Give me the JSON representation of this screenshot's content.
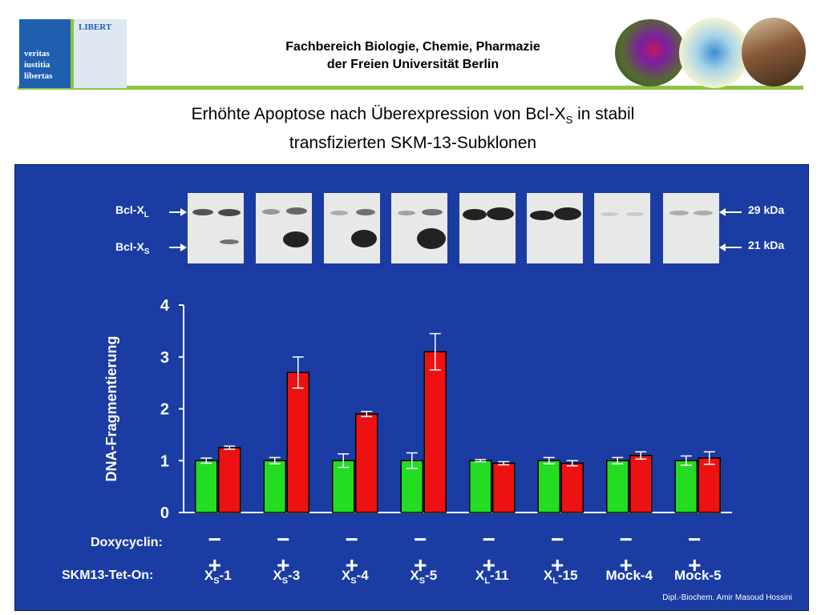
{
  "header": {
    "logo_text": [
      "veritas",
      "iustitia",
      "libertas"
    ],
    "logo_banner": "LIBERT",
    "institution_line1": "Fachbereich Biologie, Chemie, Pharmazie",
    "institution_line2": "der Freien Universität Berlin"
  },
  "title": {
    "line1_pre": "Erhöhte Apoptose nach Überexpression von Bcl-X",
    "line1_sub": "S",
    "line1_post": " in stabil",
    "line2": "transfizierten SKM-13-Subklonen"
  },
  "blot": {
    "left_label_top": "Bcl-X",
    "left_label_top_sub": "L",
    "left_label_bottom": "Bcl-X",
    "left_label_bottom_sub": "S",
    "right_label_top": "29 kDa",
    "right_label_bottom": "21 kDa"
  },
  "rows": {
    "doxy_label": "Doxycyclin:",
    "clone_label": "SKM13-Tet-On:",
    "signs": "− +"
  },
  "credit": "Dipl.-Biochem. Amir Masoud Hossini",
  "colors": {
    "panel": "#1a3ca3",
    "minus_bar": "#22dd22",
    "plus_bar": "#ee1111",
    "accent_green": "#8cc63f"
  },
  "chart_data": {
    "type": "bar",
    "ylabel": "DNA-Fragmentierung",
    "ylim": [
      0,
      4
    ],
    "yticks": [
      0,
      1,
      2,
      3,
      4
    ],
    "categories": [
      {
        "base": "X",
        "sub": "S",
        "suffix": "-1"
      },
      {
        "base": "X",
        "sub": "S",
        "suffix": "-3"
      },
      {
        "base": "X",
        "sub": "S",
        "suffix": "-4"
      },
      {
        "base": "X",
        "sub": "S",
        "suffix": "-5"
      },
      {
        "base": "X",
        "sub": "L",
        "suffix": "-11"
      },
      {
        "base": "X",
        "sub": "L",
        "suffix": "-15"
      },
      {
        "base": "Mock-4",
        "sub": "",
        "suffix": ""
      },
      {
        "base": "Mock-5",
        "sub": "",
        "suffix": ""
      }
    ],
    "series": [
      {
        "doxycyclin": "−",
        "values": [
          1.0,
          1.0,
          1.0,
          1.0,
          1.0,
          1.0,
          1.0,
          1.0
        ],
        "errors": [
          0.05,
          0.06,
          0.13,
          0.15,
          0.02,
          0.06,
          0.06,
          0.09
        ]
      },
      {
        "doxycyclin": "+",
        "values": [
          1.25,
          2.7,
          1.9,
          3.1,
          0.95,
          0.95,
          1.1,
          1.05
        ],
        "errors": [
          0.03,
          0.3,
          0.05,
          0.35,
          0.03,
          0.05,
          0.07,
          0.12
        ]
      }
    ],
    "grid": false
  }
}
